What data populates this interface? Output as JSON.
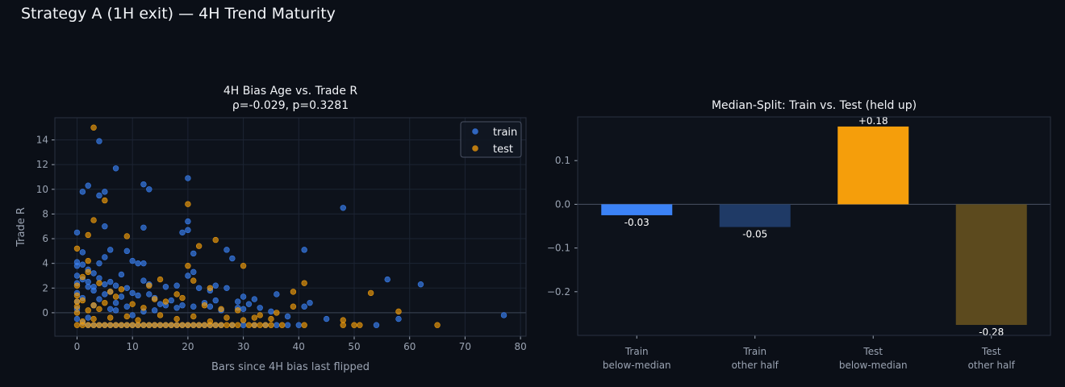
{
  "figure": {
    "title": "Strategy A (1H exit) — 4H Trend Maturity"
  },
  "colors": {
    "background": "#0b0f17",
    "plot_bg": "#0d121b",
    "train": "#3b82f6",
    "test": "#f59e0b",
    "train_bar_dark": "#1f3a66",
    "test_bar_dark": "#5c4a1e",
    "axis_text": "#9aa3b2",
    "grid": "#1c2433"
  },
  "chart_data": [
    {
      "type": "scatter",
      "title": "4H Bias Age vs. Trade R",
      "subtitle": "ρ=-0.029, p=0.3281",
      "xlabel": "Bars since 4H bias last flipped",
      "ylabel": "Trade R",
      "xlim": [
        -4,
        81
      ],
      "ylim": [
        -1.9,
        15.8
      ],
      "xticks": [
        "0",
        "10",
        "20",
        "30",
        "40",
        "50",
        "60",
        "70",
        "80"
      ],
      "yticks": [
        "0",
        "2",
        "4",
        "6",
        "8",
        "10",
        "12",
        "14"
      ],
      "grid": true,
      "legend": "top-right",
      "series": [
        {
          "name": "train",
          "color": "#3b82f6",
          "points": [
            [
              0,
              6.5
            ],
            [
              1,
              9.8
            ],
            [
              2,
              10.3
            ],
            [
              4,
              13.9
            ],
            [
              4,
              9.5
            ],
            [
              5,
              9.8
            ],
            [
              7,
              11.7
            ],
            [
              12,
              10.4
            ],
            [
              13,
              10
            ],
            [
              20,
              10.9
            ],
            [
              20,
              7.4
            ],
            [
              20,
              6.7
            ],
            [
              19,
              6.5
            ],
            [
              12,
              6.9
            ],
            [
              5,
              7
            ],
            [
              48,
              8.5
            ],
            [
              27,
              5.1
            ],
            [
              21,
              4.8
            ],
            [
              28,
              4.4
            ],
            [
              41,
              5.1
            ],
            [
              0,
              4.1
            ],
            [
              1,
              3.9
            ],
            [
              2,
              3.5
            ],
            [
              3,
              3.2
            ],
            [
              4,
              4
            ],
            [
              5,
              4.5
            ],
            [
              6,
              5.1
            ],
            [
              9,
              5
            ],
            [
              10,
              4.2
            ],
            [
              11,
              4
            ],
            [
              0,
              3
            ],
            [
              2,
              2.5
            ],
            [
              3,
              1.8
            ],
            [
              4,
              2.8
            ],
            [
              5,
              2.3
            ],
            [
              6,
              1.7
            ],
            [
              7,
              2.2
            ],
            [
              8,
              3.1
            ],
            [
              9,
              2
            ],
            [
              10,
              1.6
            ],
            [
              12,
              2.6
            ],
            [
              13,
              1.5
            ],
            [
              14,
              1.2
            ],
            [
              16,
              2.1
            ],
            [
              18,
              2.2
            ],
            [
              20,
              3
            ],
            [
              21,
              3.3
            ],
            [
              22,
              2
            ],
            [
              24,
              1.8
            ],
            [
              27,
              2
            ],
            [
              30,
              1.3
            ],
            [
              32,
              1.1
            ],
            [
              36,
              1.5
            ],
            [
              41,
              0.5
            ],
            [
              42,
              0.8
            ],
            [
              45,
              -0.5
            ],
            [
              54,
              -1
            ],
            [
              56,
              2.7
            ],
            [
              58,
              -0.5
            ],
            [
              62,
              2.3
            ],
            [
              77,
              -0.2
            ],
            [
              38,
              -0.3
            ],
            [
              35,
              0.1
            ],
            [
              30,
              0.3
            ],
            [
              26,
              0.2
            ],
            [
              24,
              0.5
            ],
            [
              18,
              0.4
            ],
            [
              15,
              0.7
            ],
            [
              14,
              0.2
            ],
            [
              12,
              0.1
            ],
            [
              10,
              -0.2
            ],
            [
              9,
              0.5
            ],
            [
              7,
              0.8
            ],
            [
              6,
              0.3
            ],
            [
              3,
              0.6
            ],
            [
              2,
              -0.4
            ],
            [
              1,
              1.2
            ],
            [
              0,
              1.6
            ],
            [
              0,
              0.9
            ],
            [
              0,
              0.3
            ],
            [
              0,
              -0.5
            ],
            [
              1,
              -0.8
            ],
            [
              2,
              -1
            ],
            [
              3,
              -1
            ],
            [
              4,
              -1
            ],
            [
              5,
              -1
            ],
            [
              6,
              -1
            ],
            [
              7,
              -1
            ],
            [
              8,
              -1
            ],
            [
              9,
              -1
            ],
            [
              10,
              -1
            ],
            [
              11,
              -1
            ],
            [
              12,
              -1
            ],
            [
              13,
              -1
            ],
            [
              14,
              -1
            ],
            [
              15,
              -1
            ],
            [
              16,
              -1
            ],
            [
              17,
              -1
            ],
            [
              18,
              -1
            ],
            [
              19,
              -1
            ],
            [
              20,
              -1
            ],
            [
              21,
              -1
            ],
            [
              22,
              -1
            ],
            [
              23,
              -1
            ],
            [
              24,
              -1
            ],
            [
              25,
              -1
            ],
            [
              26,
              -1
            ],
            [
              28,
              -1
            ],
            [
              30,
              -1
            ],
            [
              32,
              -1
            ],
            [
              34,
              -1
            ],
            [
              36,
              -1
            ],
            [
              38,
              -1
            ],
            [
              40,
              -1
            ],
            [
              16,
              0.6
            ],
            [
              17,
              1
            ],
            [
              19,
              0.6
            ],
            [
              21,
              0.5
            ],
            [
              23,
              0.8
            ],
            [
              25,
              1
            ],
            [
              29,
              0.9
            ],
            [
              31,
              0.7
            ],
            [
              33,
              0.4
            ],
            [
              11,
              1.4
            ],
            [
              8,
              1.3
            ],
            [
              4,
              1.1
            ],
            [
              3,
              2.1
            ],
            [
              6,
              2.5
            ],
            [
              13,
              2.3
            ],
            [
              0,
              2.4
            ],
            [
              1,
              2.7
            ],
            [
              2,
              2.1
            ],
            [
              5,
              1.5
            ],
            [
              7,
              0.2
            ],
            [
              0,
              3.8
            ],
            [
              1,
              4.9
            ],
            [
              12,
              4
            ],
            [
              25,
              2.2
            ],
            [
              29,
              0.4
            ]
          ]
        },
        {
          "name": "test",
          "color": "#f59e0b",
          "points": [
            [
              3,
              15
            ],
            [
              3,
              7.5
            ],
            [
              5,
              9.1
            ],
            [
              20,
              8.8
            ],
            [
              9,
              6.2
            ],
            [
              2,
              6.3
            ],
            [
              0,
              5.2
            ],
            [
              22,
              5.4
            ],
            [
              25,
              5.9
            ],
            [
              20,
              3.8
            ],
            [
              30,
              3.8
            ],
            [
              41,
              2.4
            ],
            [
              24,
              2
            ],
            [
              21,
              2.6
            ],
            [
              15,
              2.7
            ],
            [
              13,
              2.2
            ],
            [
              8,
              1.9
            ],
            [
              18,
              1.5
            ],
            [
              6,
              1.7
            ],
            [
              4,
              2.4
            ],
            [
              2,
              4.2
            ],
            [
              2,
              3.3
            ],
            [
              1,
              2.9
            ],
            [
              0,
              2.2
            ],
            [
              0,
              1.4
            ],
            [
              0,
              0.9
            ],
            [
              0,
              0.5
            ],
            [
              1,
              1
            ],
            [
              3,
              0.6
            ],
            [
              5,
              0.8
            ],
            [
              7,
              1.3
            ],
            [
              10,
              0.7
            ],
            [
              12,
              0.4
            ],
            [
              14,
              1.1
            ],
            [
              16,
              0.9
            ],
            [
              19,
              1.2
            ],
            [
              23,
              0.6
            ],
            [
              26,
              0.3
            ],
            [
              29,
              0.2
            ],
            [
              33,
              -0.2
            ],
            [
              36,
              0
            ],
            [
              39,
              0.5
            ],
            [
              39,
              1.7
            ],
            [
              48,
              -0.6
            ],
            [
              48,
              -1
            ],
            [
              50,
              -1
            ],
            [
              51,
              -1
            ],
            [
              53,
              1.6
            ],
            [
              58,
              0.1
            ],
            [
              65,
              -1
            ],
            [
              0,
              -1
            ],
            [
              1,
              -1
            ],
            [
              2,
              -1
            ],
            [
              3,
              -1
            ],
            [
              4,
              -1
            ],
            [
              5,
              -1
            ],
            [
              6,
              -1
            ],
            [
              7,
              -1
            ],
            [
              8,
              -1
            ],
            [
              9,
              -1
            ],
            [
              10,
              -1
            ],
            [
              11,
              -1
            ],
            [
              12,
              -1
            ],
            [
              13,
              -1
            ],
            [
              14,
              -1
            ],
            [
              15,
              -1
            ],
            [
              16,
              -1
            ],
            [
              17,
              -1
            ],
            [
              18,
              -1
            ],
            [
              19,
              -1
            ],
            [
              20,
              -1
            ],
            [
              21,
              -1
            ],
            [
              22,
              -1
            ],
            [
              23,
              -1
            ],
            [
              24,
              -1
            ],
            [
              25,
              -1
            ],
            [
              26,
              -1
            ],
            [
              27,
              -1
            ],
            [
              28,
              -1
            ],
            [
              29,
              -1
            ],
            [
              31,
              -1
            ],
            [
              32,
              -1
            ],
            [
              33,
              -1
            ],
            [
              34,
              -1
            ],
            [
              35,
              -1
            ],
            [
              37,
              -1
            ],
            [
              41,
              -1
            ],
            [
              1,
              -0.7
            ],
            [
              3,
              -0.5
            ],
            [
              6,
              -0.4
            ],
            [
              9,
              -0.3
            ],
            [
              11,
              -0.6
            ],
            [
              15,
              -0.2
            ],
            [
              18,
              -0.5
            ],
            [
              21,
              -0.3
            ],
            [
              24,
              -0.7
            ],
            [
              27,
              -0.4
            ],
            [
              30,
              -0.6
            ],
            [
              32,
              -0.4
            ],
            [
              35,
              -0.5
            ],
            [
              0,
              0
            ],
            [
              2,
              0.2
            ],
            [
              4,
              0.3
            ]
          ]
        }
      ]
    },
    {
      "type": "bar",
      "title": "Median-Split: Train vs. Test (held up)",
      "categories": [
        [
          "Train",
          "below-median"
        ],
        [
          "Train",
          "other half"
        ],
        [
          "Test",
          "below-median"
        ],
        [
          "Test",
          "other half"
        ]
      ],
      "values": [
        -0.025,
        -0.052,
        0.178,
        -0.276
      ],
      "value_labels": [
        "-0.03",
        "-0.05",
        "+0.18",
        "-0.28"
      ],
      "colors": [
        "#3b82f6",
        "#1f3a66",
        "#f59e0b",
        "#5c4a1e"
      ],
      "ylim": [
        -0.3,
        0.2
      ],
      "yticks": [
        {
          "v": 0.1,
          "label": "0.1"
        },
        {
          "v": 0.0,
          "label": "0.0"
        },
        {
          "v": -0.1,
          "label": "−0.1"
        },
        {
          "v": -0.2,
          "label": "−0.2"
        }
      ]
    }
  ]
}
